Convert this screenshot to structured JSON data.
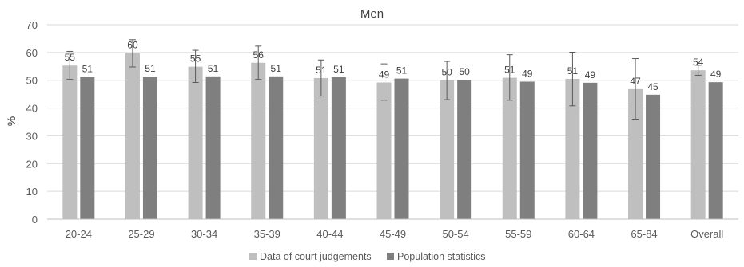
{
  "chart_data": {
    "type": "bar",
    "title": "Men",
    "ylabel": "%",
    "xlabel": "",
    "ylim": [
      0,
      70
    ],
    "yticks": [
      0,
      10,
      20,
      30,
      40,
      50,
      60,
      70
    ],
    "grid": true,
    "legend_position": "bottom",
    "categories": [
      "20-24",
      "25-29",
      "30-34",
      "35-39",
      "40-44",
      "45-49",
      "50-54",
      "55-59",
      "60-64",
      "65-84",
      "Overall"
    ],
    "series": [
      {
        "name": "Data of court judgements",
        "color": "#BFBFBF",
        "values": [
          55.3,
          59.8,
          54.9,
          56.3,
          50.8,
          49.2,
          50.0,
          50.9,
          50.5,
          46.8,
          53.6
        ],
        "labels": [
          "55",
          "60",
          "55",
          "56",
          "51",
          "49",
          "50",
          "51",
          "51",
          "47",
          "54"
        ],
        "error_low": [
          50.3,
          54.8,
          49.2,
          50.3,
          44.3,
          42.8,
          43.0,
          42.8,
          40.8,
          36.0,
          51.8
        ],
        "error_high": [
          60.4,
          64.6,
          60.8,
          62.3,
          57.3,
          55.9,
          56.8,
          59.2,
          60.1,
          57.8,
          55.4
        ]
      },
      {
        "name": "Population statistics",
        "color": "#7F7F7F",
        "values": [
          51.2,
          51.3,
          51.4,
          51.4,
          51.1,
          50.6,
          50.2,
          49.5,
          49.1,
          44.8,
          49.3
        ],
        "labels": [
          "51",
          "51",
          "51",
          "51",
          "51",
          "51",
          "50",
          "49",
          "49",
          "45",
          "49"
        ]
      }
    ]
  }
}
